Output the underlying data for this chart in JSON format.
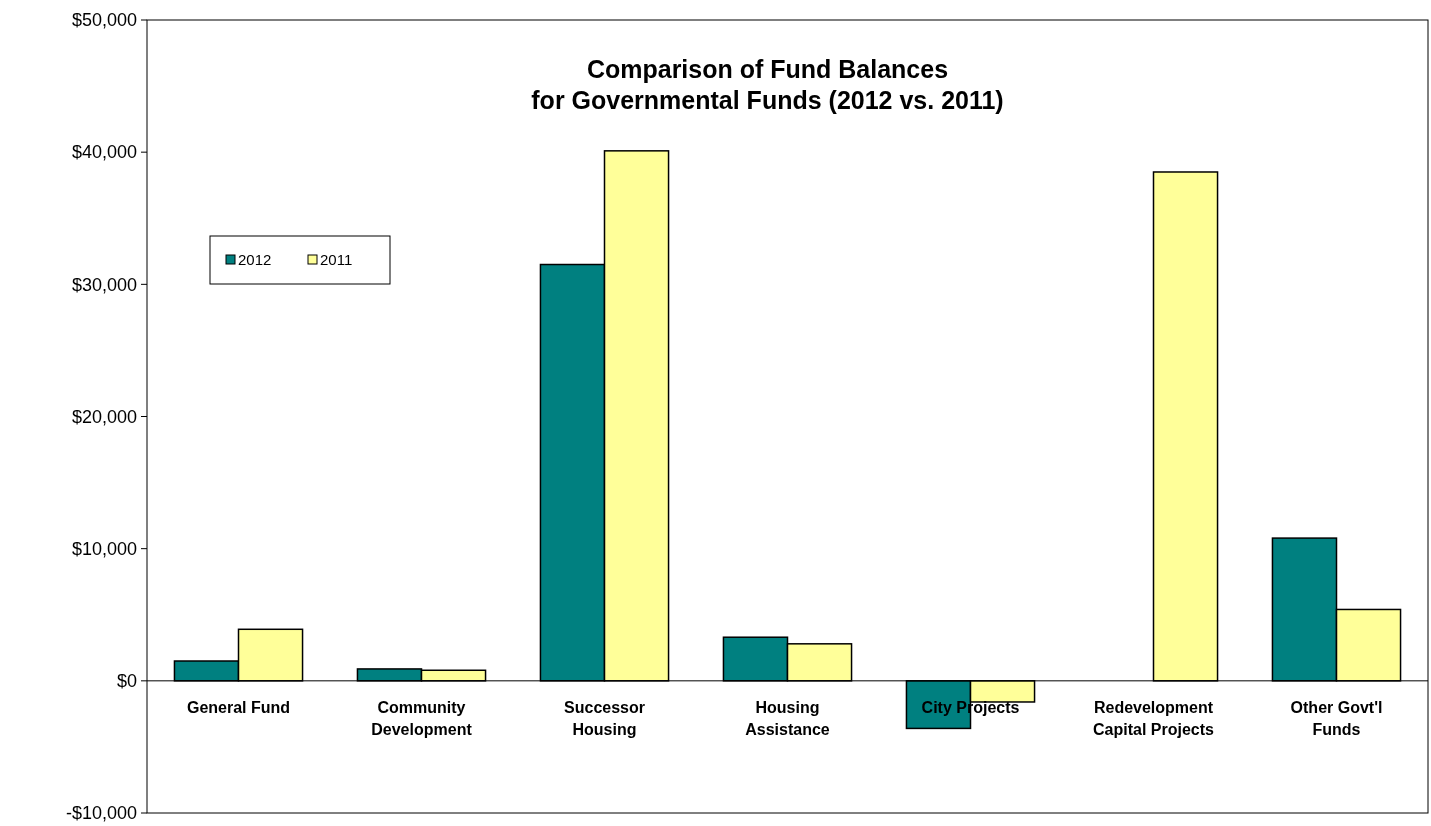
{
  "chart_data": {
    "type": "bar",
    "title": "Comparison of Fund Balances\nfor Governmental Funds (2012 vs. 2011)",
    "categories": [
      "General Fund",
      "Community Development",
      "Successor Housing",
      "Housing Assistance",
      "City Projects",
      "Redevelopment Capital Projects",
      "Other Govt'l Funds"
    ],
    "series": [
      {
        "name": "2012",
        "color": "#008080",
        "values": [
          1500,
          900,
          31500,
          3300,
          -3600,
          null,
          10800
        ]
      },
      {
        "name": "2011",
        "color": "#ffff99",
        "values": [
          3900,
          800,
          40100,
          2800,
          -1600,
          38500,
          5400
        ]
      }
    ],
    "ylim": [
      -10000,
      50000
    ],
    "yticks": [
      {
        "value": -10000,
        "label": "-$10,000"
      },
      {
        "value": 0,
        "label": "$0"
      },
      {
        "value": 10000,
        "label": "$10,000"
      },
      {
        "value": 20000,
        "label": "$20,000"
      },
      {
        "value": 30000,
        "label": "$30,000"
      },
      {
        "value": 40000,
        "label": "$40,000"
      },
      {
        "value": 50000,
        "label": "$50,000"
      }
    ],
    "grid": false,
    "legend": "top left"
  }
}
